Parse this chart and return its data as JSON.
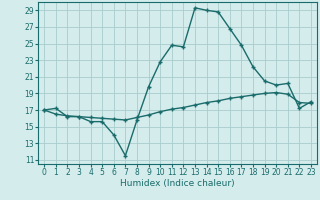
{
  "xlabel": "Humidex (Indice chaleur)",
  "x_ticks": [
    0,
    1,
    2,
    3,
    4,
    5,
    6,
    7,
    8,
    9,
    10,
    11,
    12,
    13,
    14,
    15,
    16,
    17,
    18,
    19,
    20,
    21,
    22,
    23
  ],
  "y_ticks": [
    11,
    13,
    15,
    17,
    19,
    21,
    23,
    25,
    27,
    29
  ],
  "xlim": [
    -0.5,
    23.5
  ],
  "ylim": [
    10.5,
    30.0
  ],
  "background_color": "#d4ecec",
  "grid_color": "#a8cccc",
  "line_color": "#1a6b6b",
  "curve1_x": [
    0,
    1,
    2,
    3,
    4,
    5,
    6,
    7,
    8,
    9,
    10,
    11,
    12,
    13,
    14,
    15,
    16,
    17,
    18,
    19,
    20,
    21,
    22,
    23
  ],
  "curve1_y": [
    17.0,
    17.2,
    16.2,
    16.2,
    15.6,
    15.6,
    14.0,
    11.5,
    15.8,
    19.8,
    22.8,
    24.8,
    24.6,
    29.3,
    29.0,
    28.8,
    26.8,
    24.8,
    22.2,
    20.5,
    20.0,
    20.2,
    17.2,
    18.0
  ],
  "curve2_x": [
    0,
    1,
    2,
    3,
    4,
    5,
    6,
    7,
    8,
    9,
    10,
    11,
    12,
    13,
    14,
    15,
    16,
    17,
    18,
    19,
    20,
    21,
    22,
    23
  ],
  "curve2_y": [
    17.0,
    16.5,
    16.3,
    16.2,
    16.1,
    16.0,
    15.9,
    15.8,
    16.1,
    16.4,
    16.8,
    17.1,
    17.3,
    17.6,
    17.9,
    18.1,
    18.4,
    18.6,
    18.8,
    19.0,
    19.1,
    18.9,
    17.9,
    17.8
  ]
}
